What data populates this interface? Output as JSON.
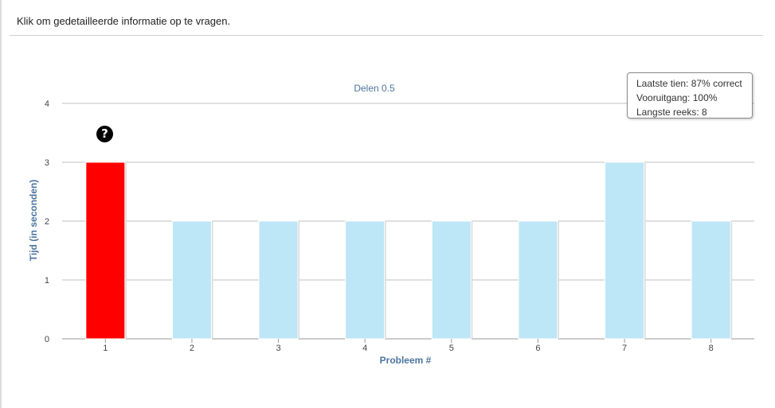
{
  "instruction": "Klik om gedetailleerde informatie op te vragen.",
  "help_icon": {
    "icon": "question-circle-icon",
    "glyph": "?"
  },
  "tooltip": {
    "lines": [
      "Laatste tien: 87% correct",
      "Vooruitgang: 100%",
      "Langste reeks: 8"
    ]
  },
  "colors": {
    "highlight_bar": "#ff0000",
    "bar": "#bde6f7",
    "grid": "#c0c0c0",
    "title": "#4d759e"
  },
  "chart_data": {
    "type": "bar",
    "title": "Delen 0.5",
    "xlabel": "Probleem #",
    "ylabel": "Tijd (in seconden)",
    "categories": [
      "1",
      "2",
      "3",
      "4",
      "5",
      "6",
      "7",
      "8"
    ],
    "values": [
      3,
      2,
      2,
      2,
      2,
      2,
      3,
      2
    ],
    "highlighted_index": 0,
    "ylim": [
      0,
      4
    ],
    "yticks": [
      "0",
      "1",
      "2",
      "3",
      "4"
    ],
    "grid": true,
    "legend": "none"
  }
}
